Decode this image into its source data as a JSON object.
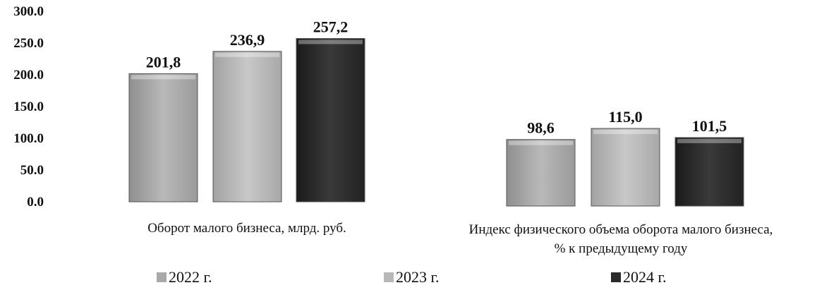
{
  "chart_data": {
    "type": "bar",
    "groups": [
      {
        "label_lines": [
          "Оборот малого бизнеса, млрд. руб."
        ],
        "values": [
          201.8,
          236.9,
          257.2
        ],
        "value_labels": [
          "201,8",
          "236,9",
          "257,2"
        ]
      },
      {
        "label_lines": [
          "Индекс физического объема оборота малого бизнеса,",
          "% к предыдущему году"
        ],
        "values": [
          98.6,
          115.0,
          101.5
        ],
        "value_labels": [
          "98,6",
          "115,0",
          "101,5"
        ]
      }
    ],
    "series": [
      {
        "name": "2022 г.",
        "color": "#a9a9a9"
      },
      {
        "name": "2023 г.",
        "color": "#b8b8b8"
      },
      {
        "name": "2024 г.",
        "color": "#2a2a2a"
      }
    ],
    "yticks": [
      "0.0",
      "50.0",
      "100.0",
      "150.0",
      "200.0",
      "250.0",
      "300.0"
    ],
    "ylim": [
      0,
      300
    ],
    "grid": false,
    "legend_position": "bottom"
  }
}
